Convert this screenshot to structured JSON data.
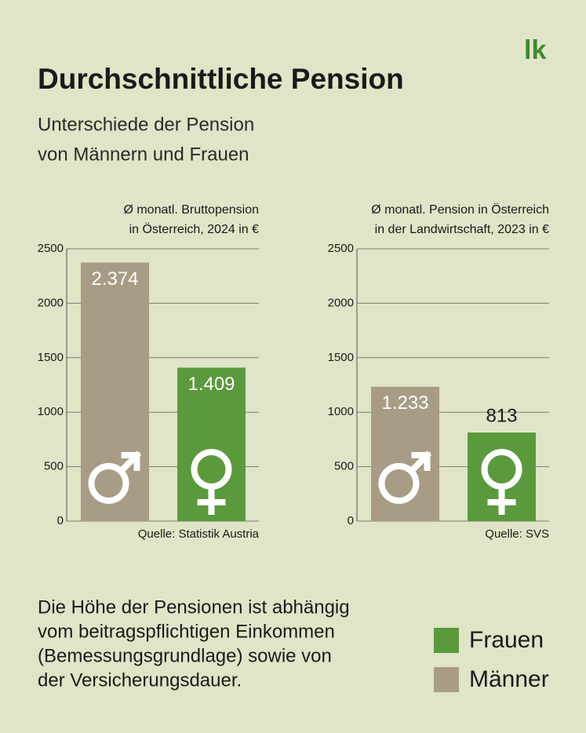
{
  "header": {
    "logo": "lk",
    "title": "Durchschnittliche Pension",
    "subtitle": [
      "Unterschiede der Pension",
      "von Männern und Frauen"
    ]
  },
  "chart_data": [
    {
      "type": "bar",
      "title": [
        "Ø monatl. Bruttopension",
        "in Österreich, 2024 in €"
      ],
      "values": [
        2374,
        1409
      ],
      "value_labels": [
        "2.374",
        "1.409"
      ],
      "colors": [
        "#a89c86",
        "#5a9a3c"
      ],
      "ylim": [
        0,
        2500
      ],
      "yticks": [
        0,
        500,
        1000,
        1500,
        2000,
        2500
      ],
      "grid": true,
      "source": "Quelle: Statistik Austria"
    },
    {
      "type": "bar",
      "title": [
        "Ø monatl. Pension in Österreich",
        "in der Landwirtschaft, 2023 in €"
      ],
      "values": [
        1233,
        813
      ],
      "value_labels": [
        "1.233",
        "813"
      ],
      "colors": [
        "#a89c86",
        "#5a9a3c"
      ],
      "ylim": [
        0,
        2500
      ],
      "yticks": [
        0,
        500,
        1000,
        1500,
        2000,
        2500
      ],
      "grid": true,
      "source": "Quelle: SVS"
    }
  ],
  "footnote": [
    "Die Höhe der Pensionen ist abhängig",
    "vom beitragspflichtigen Einkommen",
    "(Bemessungsgrundlage) sowie von",
    "der Versicherungsdauer."
  ],
  "legend": [
    {
      "name": "Frauen",
      "color": "#5a9a3c"
    },
    {
      "name": "Männer",
      "color": "#a89c86"
    }
  ]
}
